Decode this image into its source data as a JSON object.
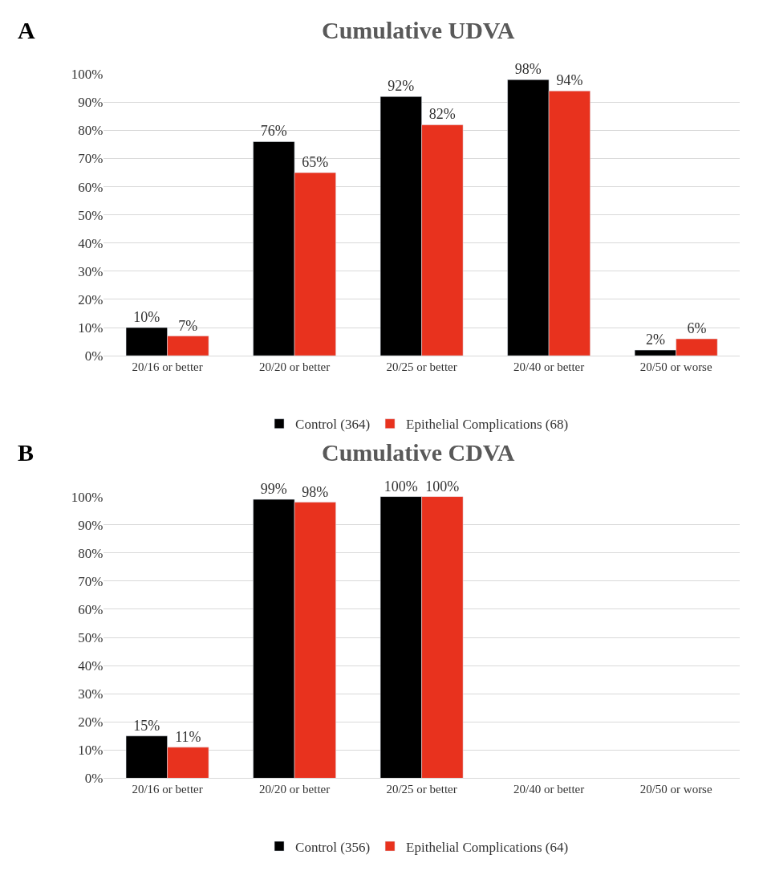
{
  "chart_data": [
    {
      "type": "bar",
      "title": "Cumulative UDVA",
      "annotations": [
        "A"
      ],
      "categories": [
        "20/16 or better",
        "20/20 or better",
        "20/25 or better",
        "20/40 or better",
        "20/50 or worse"
      ],
      "series": [
        {
          "name": "Control (364)",
          "color": "#000000",
          "values": [
            10,
            76,
            92,
            98,
            2
          ],
          "value_labels": [
            "10%",
            "76%",
            "92%",
            "98%",
            "2%"
          ]
        },
        {
          "name": "Epithelial Complications (68)",
          "color": "#e8321e",
          "values": [
            7,
            65,
            82,
            94,
            6
          ],
          "value_labels": [
            "7%",
            "65%",
            "82%",
            "94%",
            "6%"
          ]
        }
      ],
      "ylim": [
        0,
        100
      ],
      "yticks": [
        {
          "value": 0,
          "label": "0%"
        },
        {
          "value": 10,
          "label": "10%"
        },
        {
          "value": 20,
          "label": "20%"
        },
        {
          "value": 30,
          "label": "30%"
        },
        {
          "value": 40,
          "label": "40%"
        },
        {
          "value": 50,
          "label": "50%"
        },
        {
          "value": 60,
          "label": "60%"
        },
        {
          "value": 70,
          "label": "70%"
        },
        {
          "value": 80,
          "label": "80%"
        },
        {
          "value": 90,
          "label": "90%"
        },
        {
          "value": 100,
          "label": "100%"
        }
      ],
      "grid": "y",
      "legend": "bottom"
    },
    {
      "type": "bar",
      "title": "Cumulative CDVA",
      "annotations": [
        "B"
      ],
      "categories": [
        "20/16 or better",
        "20/20 or better",
        "20/25 or better",
        "20/40 or better",
        "20/50 or worse"
      ],
      "series": [
        {
          "name": "Control (356)",
          "color": "#000000",
          "values": [
            15,
            99,
            100,
            null,
            null
          ],
          "value_labels": [
            "15%",
            "99%",
            "100%",
            null,
            null
          ]
        },
        {
          "name": "Epithelial Complications (64)",
          "color": "#e8321e",
          "values": [
            11,
            98,
            100,
            null,
            null
          ],
          "value_labels": [
            "11%",
            "98%",
            "100%",
            null,
            null
          ]
        }
      ],
      "ylim": [
        0,
        100
      ],
      "yticks": [
        {
          "value": 0,
          "label": "0%"
        },
        {
          "value": 10,
          "label": "10%"
        },
        {
          "value": 20,
          "label": "20%"
        },
        {
          "value": 30,
          "label": "30%"
        },
        {
          "value": 40,
          "label": "40%"
        },
        {
          "value": 50,
          "label": "50%"
        },
        {
          "value": 60,
          "label": "60%"
        },
        {
          "value": 70,
          "label": "70%"
        },
        {
          "value": 80,
          "label": "80%"
        },
        {
          "value": 90,
          "label": "90%"
        },
        {
          "value": 100,
          "label": "100%"
        }
      ],
      "grid": "y",
      "legend": "bottom"
    }
  ]
}
